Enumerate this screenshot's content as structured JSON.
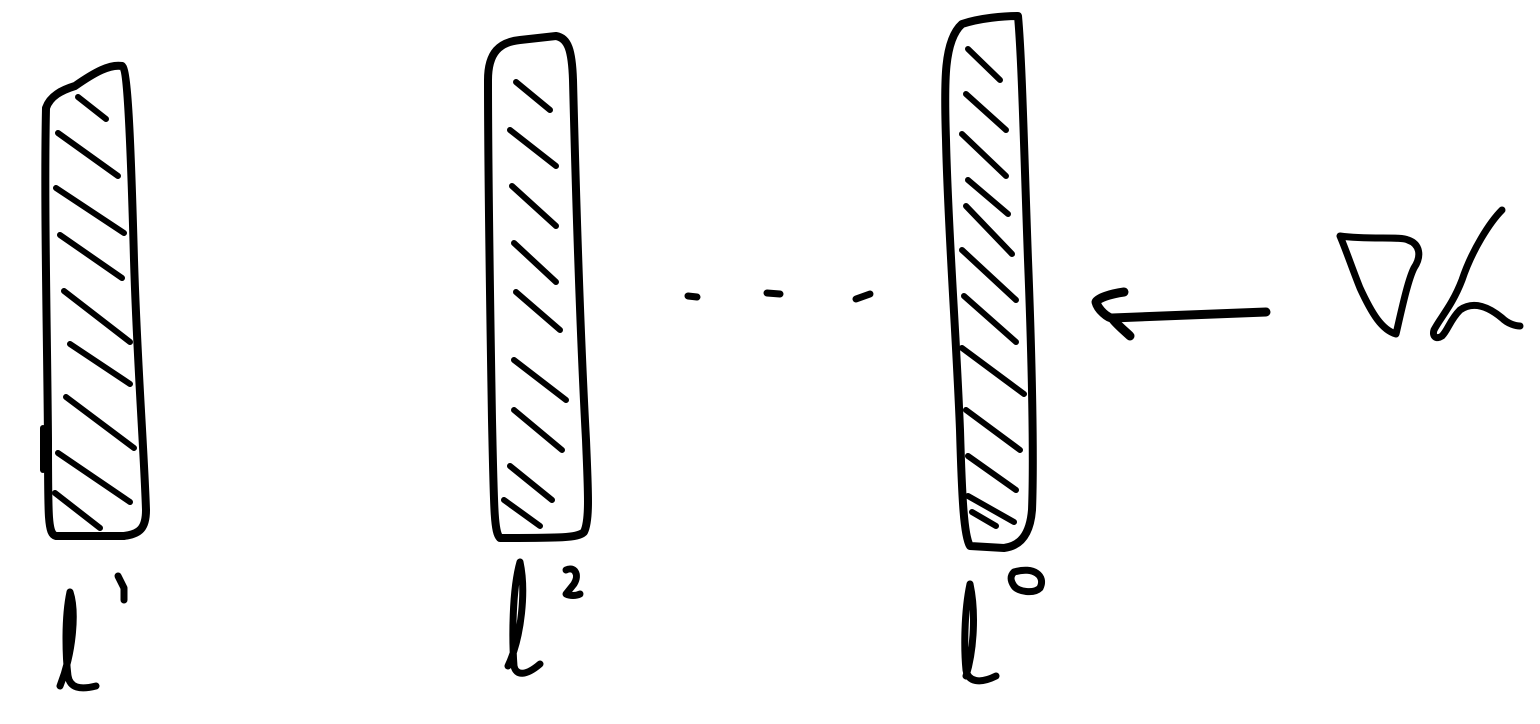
{
  "diagram": {
    "layers": [
      {
        "id": "layer-1",
        "label_base": "l",
        "label_superscript": "1"
      },
      {
        "id": "layer-2",
        "label_base": "l",
        "label_superscript": "2"
      },
      {
        "id": "layer-o",
        "label_base": "l",
        "label_superscript": "o"
      }
    ],
    "ellipsis": "...",
    "gradient_label": "∇L",
    "colors": {
      "ink": "#000000",
      "background": "#ffffff"
    }
  }
}
